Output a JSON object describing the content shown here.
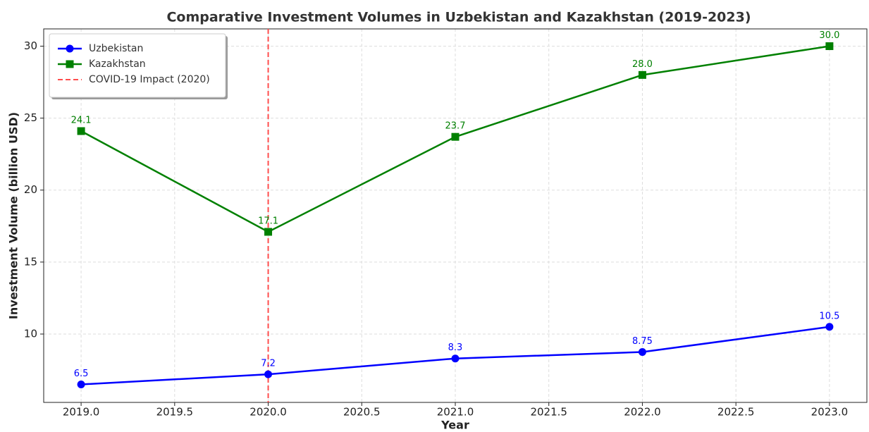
{
  "chart_data": {
    "type": "line",
    "title": "Comparative Investment Volumes in Uzbekistan and Kazakhstan (2019-2023)",
    "xlabel": "Year",
    "ylabel": "Investment Volume (billion USD)",
    "x": [
      2019,
      2020,
      2021,
      2022,
      2023
    ],
    "series": [
      {
        "name": "Uzbekistan",
        "color": "#0000ff",
        "marker": "circle",
        "values": [
          6.5,
          7.2,
          8.3,
          8.75,
          10.5
        ]
      },
      {
        "name": "Kazakhstan",
        "color": "#008000",
        "marker": "square",
        "values": [
          24.1,
          17.1,
          23.7,
          28.0,
          30.0
        ],
        "value_labels": [
          "24.1",
          "17.1",
          "23.7",
          "28.0",
          "30.0"
        ]
      }
    ],
    "vlines": [
      {
        "x": 2020,
        "label": "COVID-19 Impact (2020)",
        "color": "#ff4d4d"
      }
    ],
    "xlim": [
      2018.8,
      2023.2
    ],
    "xticks": [
      {
        "value": 2019,
        "label": "2019.0"
      },
      {
        "value": 2019.5,
        "label": "2019.5"
      },
      {
        "value": 2020,
        "label": "2020.0"
      },
      {
        "value": 2020.5,
        "label": "2020.5"
      },
      {
        "value": 2021,
        "label": "2021.0"
      },
      {
        "value": 2021.5,
        "label": "2021.5"
      },
      {
        "value": 2022,
        "label": "2022.0"
      },
      {
        "value": 2022.5,
        "label": "2022.5"
      },
      {
        "value": 2023,
        "label": "2023.0"
      }
    ],
    "ylim": [
      5.25,
      31.2
    ],
    "yticks": [
      10,
      15,
      20,
      25,
      30
    ],
    "grid": true,
    "legend": "upper-left"
  }
}
